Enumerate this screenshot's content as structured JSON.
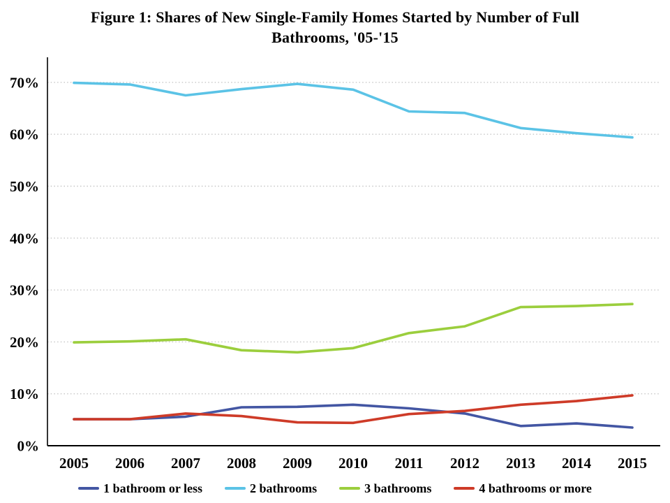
{
  "title": {
    "full": "Figure 1: Shares of New Single-Family Homes Started by Number of Full Bathrooms, '05-'15",
    "lines": [
      "Figure 1: Shares of New Single-Family  Homes Started by Number of Full",
      "Bathrooms, '05-'15"
    ]
  },
  "colors": {
    "series_1_bath": "#4356A3",
    "series_2_bath": "#5BC3E6",
    "series_3_bath": "#9BCE3D",
    "series_4_bath": "#CE3B28",
    "gridline": "#C6C6C6",
    "axis": "#000000",
    "text": "#000000",
    "background": "#FFFFFF"
  },
  "chart_data": {
    "type": "line",
    "title": "Figure 1: Shares of New Single-Family Homes Started by Number of Full Bathrooms, '05-'15",
    "x": [
      2005,
      2006,
      2007,
      2008,
      2009,
      2010,
      2011,
      2012,
      2013,
      2014,
      2015
    ],
    "x_labels": [
      "2005",
      "2006",
      "2007",
      "2008",
      "2009",
      "2010",
      "2011",
      "2012",
      "2013",
      "2014",
      "2015"
    ],
    "y_tick_labels": [
      "0%",
      "10%",
      "20%",
      "30%",
      "40%",
      "50%",
      "60%",
      "70%"
    ],
    "ylim": [
      0,
      75
    ],
    "grid": "horizontal-dotted",
    "legend_position": "bottom",
    "series": [
      {
        "name": "1 bathroom or less",
        "color": "#4356A3",
        "values": [
          5.1,
          5.1,
          5.6,
          7.4,
          7.5,
          7.9,
          7.2,
          6.2,
          3.8,
          4.3,
          3.5
        ]
      },
      {
        "name": "2 bathrooms",
        "color": "#5BC3E6",
        "values": [
          69.9,
          69.6,
          67.5,
          68.7,
          69.7,
          68.6,
          64.4,
          64.1,
          61.2,
          60.2,
          59.4
        ]
      },
      {
        "name": "3 bathrooms",
        "color": "#9BCE3D",
        "values": [
          19.9,
          20.1,
          20.5,
          18.4,
          18.0,
          18.8,
          21.7,
          23.0,
          26.7,
          26.9,
          27.3
        ]
      },
      {
        "name": "4 bathrooms or more",
        "color": "#CE3B28",
        "values": [
          5.1,
          5.1,
          6.2,
          5.7,
          4.5,
          4.4,
          6.1,
          6.7,
          7.9,
          8.6,
          9.7
        ]
      }
    ]
  }
}
